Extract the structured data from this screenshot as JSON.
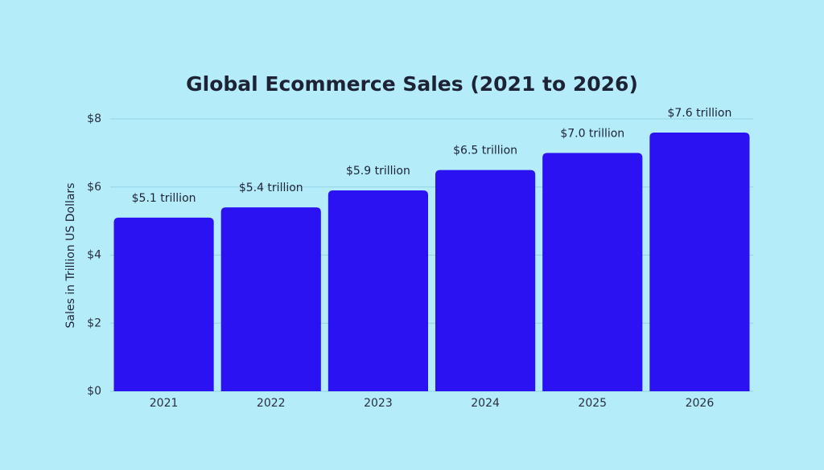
{
  "chart_data": {
    "type": "bar",
    "title": "Global Ecommerce Sales (2021 to 2026)",
    "y_label": "Sales in Trillion US Dollars",
    "categories": [
      "2021",
      "2022",
      "2023",
      "2024",
      "2025",
      "2026"
    ],
    "values": [
      5.1,
      5.4,
      5.9,
      6.5,
      7.0,
      7.6
    ],
    "value_labels": [
      "$5.1 trillion",
      "$5.4 trillion",
      "$5.9 trillion",
      "$6.5 trillion",
      "$7.0 trillion",
      "$7.6 trillion"
    ],
    "color": "#2b12f2",
    "ylim": [
      0,
      8
    ],
    "yticks": [
      {
        "value": 0,
        "label": "$0"
      },
      {
        "value": 2,
        "label": "$2"
      },
      {
        "value": 4,
        "label": "$4"
      },
      {
        "value": 6,
        "label": "$6"
      },
      {
        "value": 8,
        "label": "$8"
      }
    ],
    "grid": true
  }
}
